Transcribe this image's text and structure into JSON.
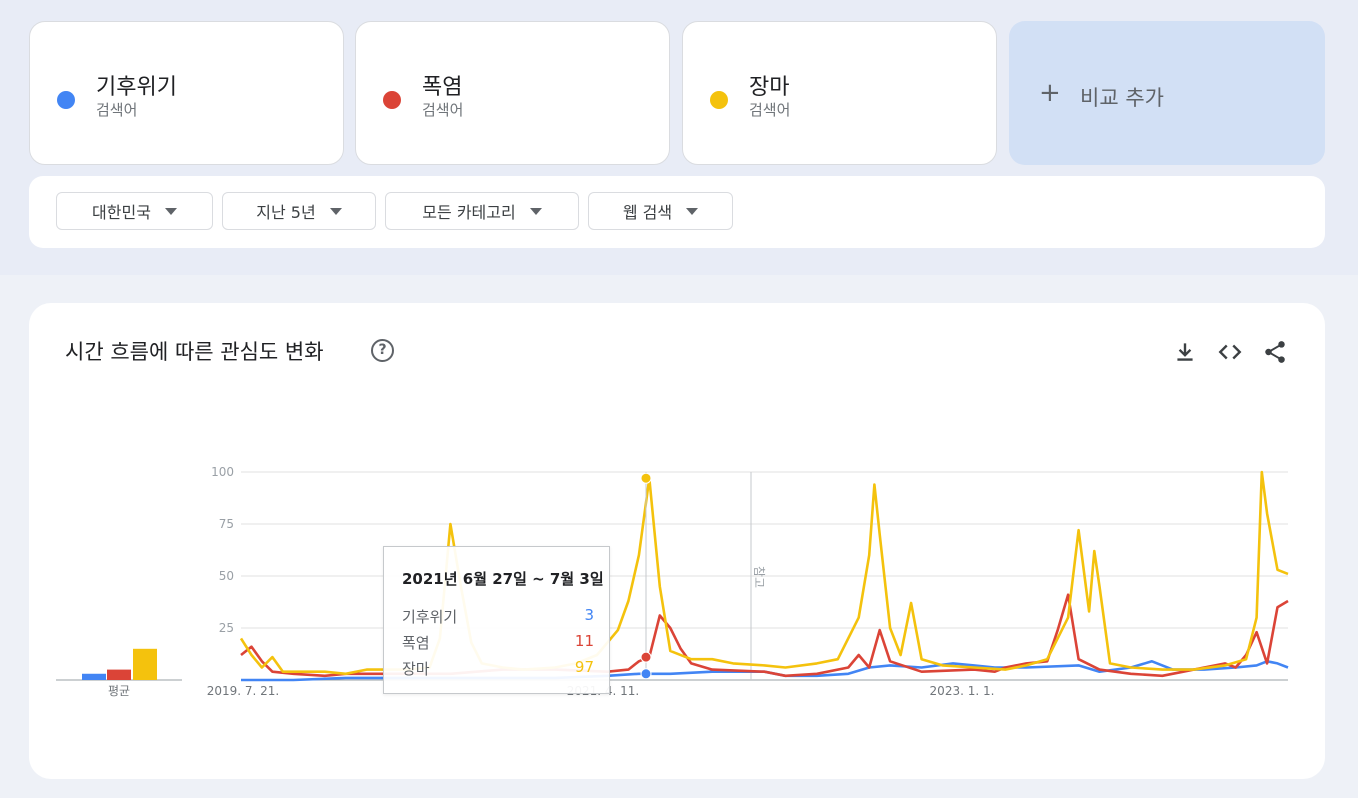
{
  "terms": [
    {
      "name": "기후위기",
      "type": "검색어",
      "color": "#4285f4"
    },
    {
      "name": "폭염",
      "type": "검색어",
      "color": "#db4437"
    },
    {
      "name": "장마",
      "type": "검색어",
      "color": "#f4c20d"
    }
  ],
  "add_compare": {
    "icon": "plus-icon",
    "label": "비교 추가"
  },
  "filters": [
    {
      "label": "대한민국"
    },
    {
      "label": "지난 5년"
    },
    {
      "label": "모든 카테고리"
    },
    {
      "label": "웹 검색"
    }
  ],
  "chart_card": {
    "title": "시간 흐름에 따른 관심도 변화",
    "help_icon": "help-circle-icon",
    "tools": [
      "download-icon",
      "embed-code-icon",
      "share-icon"
    ]
  },
  "tooltip": {
    "date_range": "2021년 6월 27일 ~ 7월 3일",
    "rows": [
      {
        "term": "기후위기",
        "value": "3"
      },
      {
        "term": "폭염",
        "value": "11"
      },
      {
        "term": "장마",
        "value": "97"
      }
    ]
  },
  "chart_data": {
    "type": "line",
    "y_ticks": [
      "100",
      "75",
      "50",
      "25"
    ],
    "x_tick_labels": [
      "2019. 7. 21.",
      "2021. 4. 11.",
      "2023. 1. 1."
    ],
    "ylim": [
      0,
      100
    ],
    "grid": true,
    "note_label": "참고",
    "average": {
      "label": "평균",
      "values": [
        3,
        5,
        15
      ]
    },
    "series": [
      {
        "name": "기후위기",
        "color": "#4285f4",
        "points": [
          [
            0,
            0
          ],
          [
            0.05,
            0
          ],
          [
            0.1,
            1
          ],
          [
            0.15,
            1
          ],
          [
            0.2,
            1
          ],
          [
            0.25,
            1
          ],
          [
            0.3,
            1
          ],
          [
            0.35,
            2
          ],
          [
            0.38,
            3
          ],
          [
            0.41,
            3
          ],
          [
            0.45,
            4
          ],
          [
            0.5,
            4
          ],
          [
            0.52,
            2
          ],
          [
            0.55,
            2
          ],
          [
            0.58,
            3
          ],
          [
            0.6,
            6
          ],
          [
            0.62,
            7
          ],
          [
            0.65,
            6
          ],
          [
            0.68,
            8
          ],
          [
            0.7,
            7
          ],
          [
            0.72,
            6
          ],
          [
            0.75,
            6
          ],
          [
            0.8,
            7
          ],
          [
            0.82,
            4
          ],
          [
            0.85,
            6
          ],
          [
            0.87,
            9
          ],
          [
            0.89,
            5
          ],
          [
            0.92,
            5
          ],
          [
            0.95,
            6
          ],
          [
            0.97,
            7
          ],
          [
            0.98,
            9
          ],
          [
            0.99,
            8
          ],
          [
            1.0,
            6
          ]
        ]
      },
      {
        "name": "폭염",
        "color": "#db4437",
        "points": [
          [
            0,
            12
          ],
          [
            0.01,
            16
          ],
          [
            0.02,
            9
          ],
          [
            0.03,
            4
          ],
          [
            0.05,
            3
          ],
          [
            0.08,
            2
          ],
          [
            0.1,
            3
          ],
          [
            0.15,
            3
          ],
          [
            0.2,
            3
          ],
          [
            0.25,
            5
          ],
          [
            0.3,
            5
          ],
          [
            0.35,
            4
          ],
          [
            0.37,
            5
          ],
          [
            0.38,
            9
          ],
          [
            0.39,
            11
          ],
          [
            0.4,
            31
          ],
          [
            0.41,
            25
          ],
          [
            0.42,
            15
          ],
          [
            0.43,
            8
          ],
          [
            0.45,
            5
          ],
          [
            0.5,
            4
          ],
          [
            0.52,
            2
          ],
          [
            0.55,
            3
          ],
          [
            0.58,
            6
          ],
          [
            0.59,
            12
          ],
          [
            0.6,
            6
          ],
          [
            0.61,
            24
          ],
          [
            0.62,
            9
          ],
          [
            0.65,
            4
          ],
          [
            0.7,
            5
          ],
          [
            0.72,
            4
          ],
          [
            0.73,
            6
          ],
          [
            0.75,
            8
          ],
          [
            0.77,
            9
          ],
          [
            0.78,
            24
          ],
          [
            0.79,
            41
          ],
          [
            0.8,
            10
          ],
          [
            0.82,
            5
          ],
          [
            0.85,
            3
          ],
          [
            0.88,
            2
          ],
          [
            0.9,
            4
          ],
          [
            0.92,
            6
          ],
          [
            0.94,
            8
          ],
          [
            0.95,
            6
          ],
          [
            0.96,
            12
          ],
          [
            0.97,
            23
          ],
          [
            0.98,
            8
          ],
          [
            0.99,
            35
          ],
          [
            1.0,
            38
          ]
        ]
      },
      {
        "name": "장마",
        "color": "#f4c20d",
        "points": [
          [
            0,
            20
          ],
          [
            0.01,
            12
          ],
          [
            0.02,
            6
          ],
          [
            0.03,
            11
          ],
          [
            0.04,
            4
          ],
          [
            0.06,
            4
          ],
          [
            0.08,
            4
          ],
          [
            0.1,
            3
          ],
          [
            0.12,
            5
          ],
          [
            0.14,
            5
          ],
          [
            0.16,
            5
          ],
          [
            0.18,
            6
          ],
          [
            0.19,
            20
          ],
          [
            0.2,
            75
          ],
          [
            0.21,
            45
          ],
          [
            0.22,
            18
          ],
          [
            0.23,
            8
          ],
          [
            0.25,
            6
          ],
          [
            0.27,
            5
          ],
          [
            0.3,
            6
          ],
          [
            0.32,
            8
          ],
          [
            0.34,
            12
          ],
          [
            0.36,
            24
          ],
          [
            0.37,
            38
          ],
          [
            0.38,
            60
          ],
          [
            0.39,
            97
          ],
          [
            0.4,
            45
          ],
          [
            0.41,
            14
          ],
          [
            0.43,
            10
          ],
          [
            0.45,
            10
          ],
          [
            0.47,
            8
          ],
          [
            0.5,
            7
          ],
          [
            0.52,
            6
          ],
          [
            0.55,
            8
          ],
          [
            0.57,
            10
          ],
          [
            0.59,
            30
          ],
          [
            0.6,
            60
          ],
          [
            0.605,
            94
          ],
          [
            0.61,
            70
          ],
          [
            0.62,
            25
          ],
          [
            0.63,
            12
          ],
          [
            0.64,
            37
          ],
          [
            0.65,
            10
          ],
          [
            0.67,
            7
          ],
          [
            0.7,
            6
          ],
          [
            0.73,
            5
          ],
          [
            0.75,
            7
          ],
          [
            0.77,
            10
          ],
          [
            0.79,
            30
          ],
          [
            0.8,
            72
          ],
          [
            0.81,
            33
          ],
          [
            0.815,
            62
          ],
          [
            0.82,
            45
          ],
          [
            0.83,
            8
          ],
          [
            0.85,
            6
          ],
          [
            0.88,
            5
          ],
          [
            0.91,
            5
          ],
          [
            0.94,
            7
          ],
          [
            0.96,
            10
          ],
          [
            0.97,
            30
          ],
          [
            0.975,
            100
          ],
          [
            0.98,
            80
          ],
          [
            0.99,
            53
          ],
          [
            1.0,
            51
          ]
        ]
      }
    ]
  }
}
